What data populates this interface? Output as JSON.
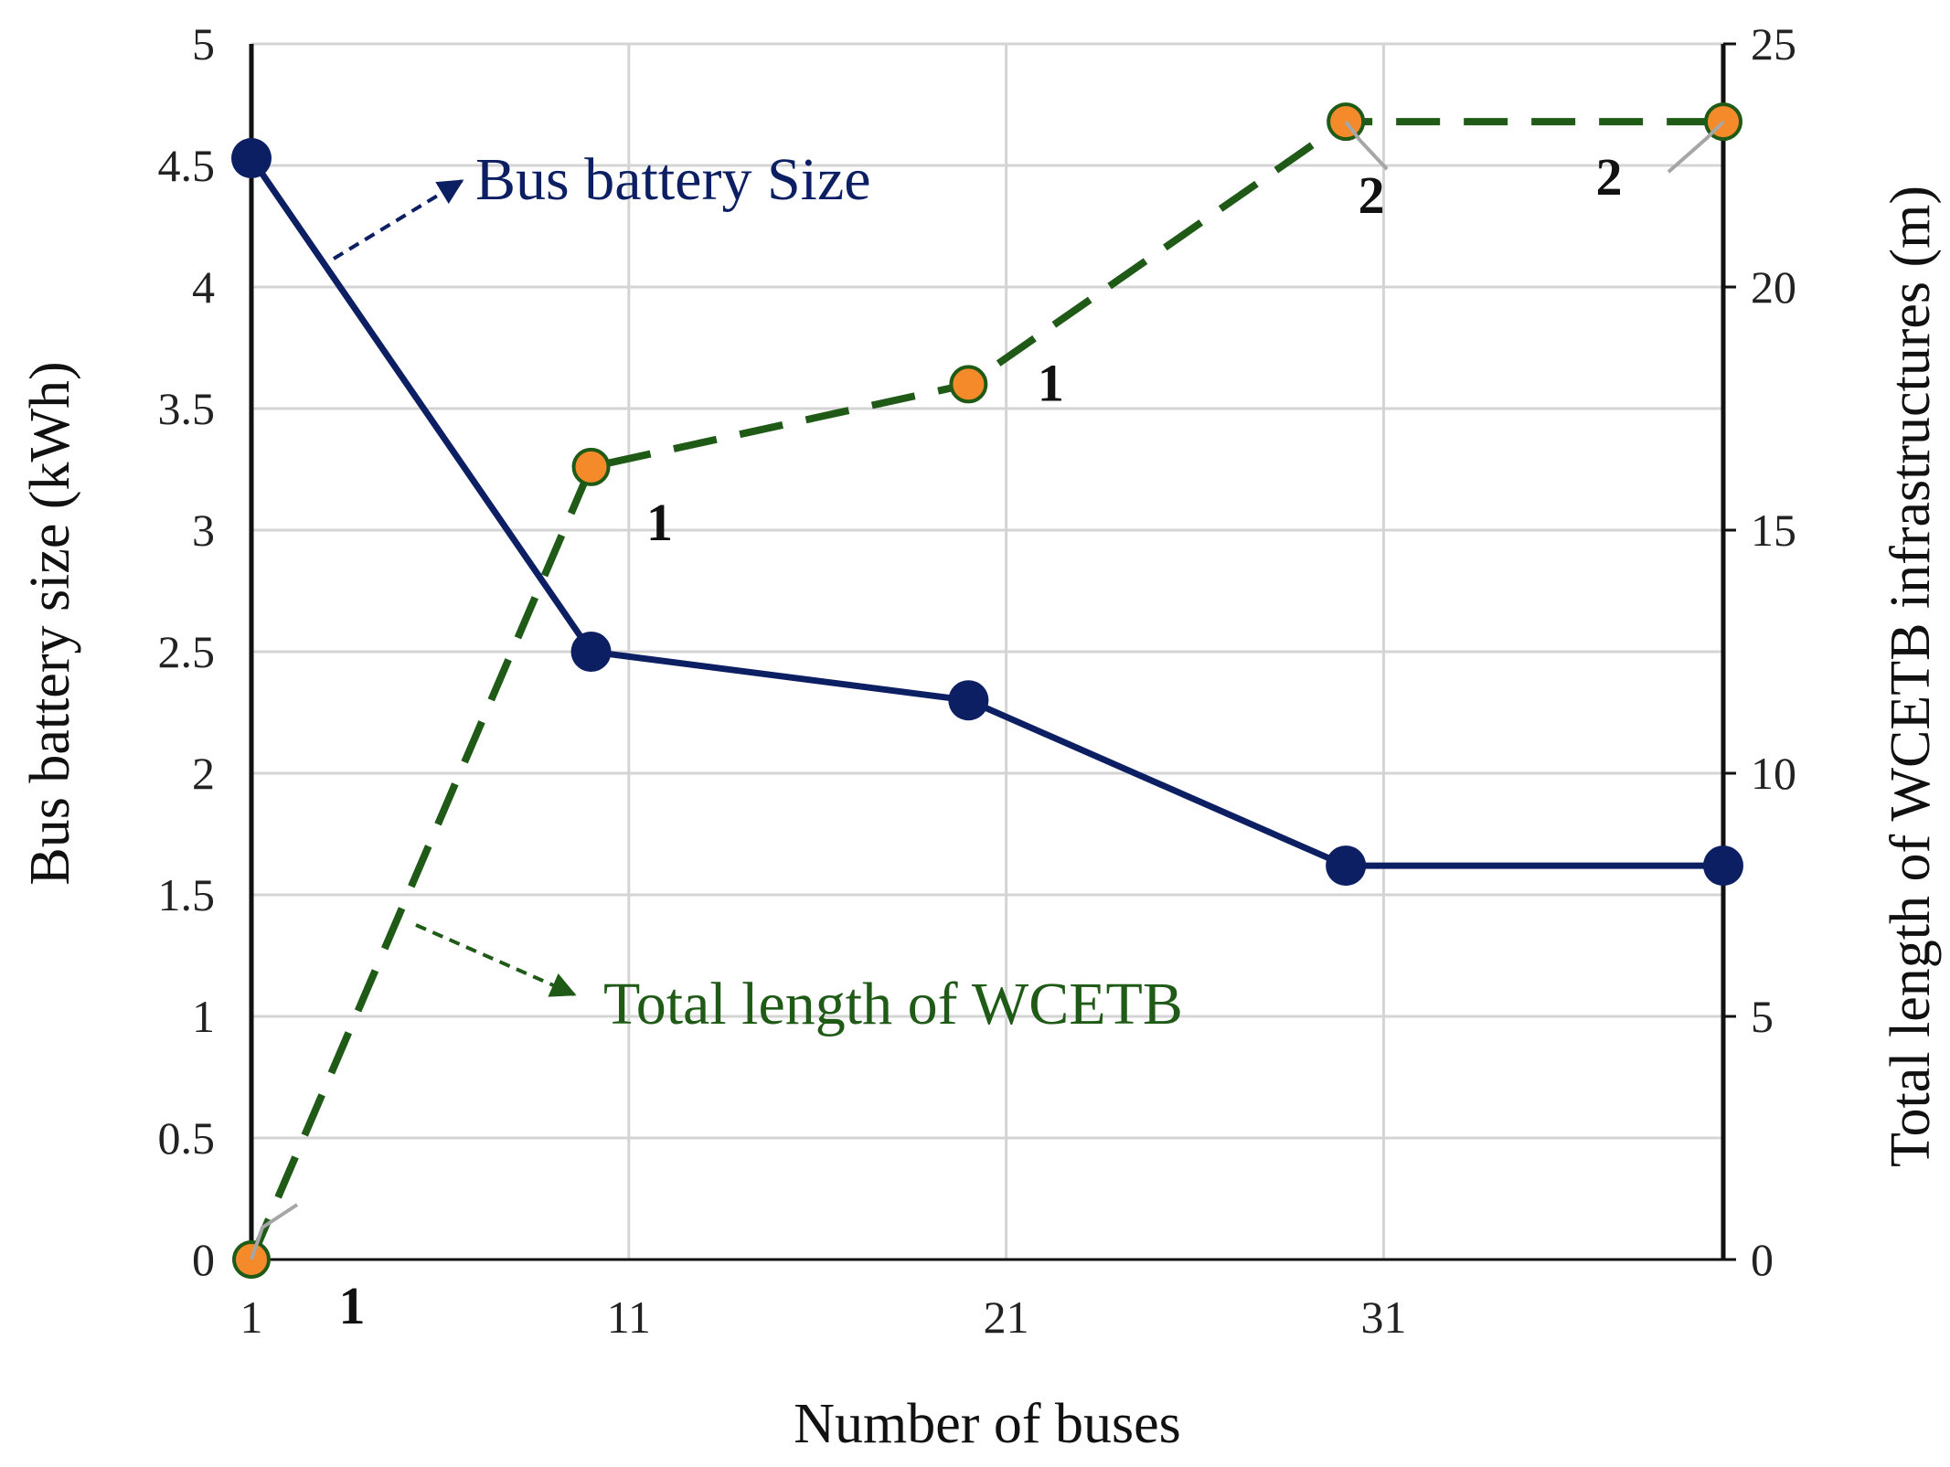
{
  "chart_data": {
    "type": "line",
    "xlabel": "Number of buses",
    "ylabel_left": "Bus battery size (kWh)",
    "ylabel_right": "Total length of WCETB infrastructures (m)",
    "x_ticks": [
      "1",
      "11",
      "21",
      "31"
    ],
    "x_range": [
      1,
      40
    ],
    "y_left_range": [
      0,
      5
    ],
    "y_left_ticks": [
      "0",
      "0.5",
      "1",
      "1.5",
      "2",
      "2.5",
      "3",
      "3.5",
      "4",
      "4.5",
      "5"
    ],
    "y_right_range": [
      0,
      25
    ],
    "y_right_ticks": [
      "0",
      "5",
      "10",
      "15",
      "20",
      "25"
    ],
    "grid": true,
    "series": [
      {
        "name": "Bus battery Size",
        "axis": "left",
        "color": "#0d1f63",
        "style": "solid",
        "x": [
          1,
          10,
          20,
          30,
          40
        ],
        "values": [
          4.53,
          2.5,
          2.3,
          1.62,
          1.62
        ]
      },
      {
        "name": "Total length of WCETB",
        "axis": "right",
        "color": "#1f5a17",
        "marker_color": "#f58a2b",
        "style": "dashed",
        "x": [
          1,
          10,
          20,
          30,
          40
        ],
        "values": [
          0,
          16.3,
          18,
          23.4,
          23.4
        ],
        "point_labels": [
          "1",
          "1",
          "1",
          "2",
          "2"
        ]
      }
    ]
  }
}
